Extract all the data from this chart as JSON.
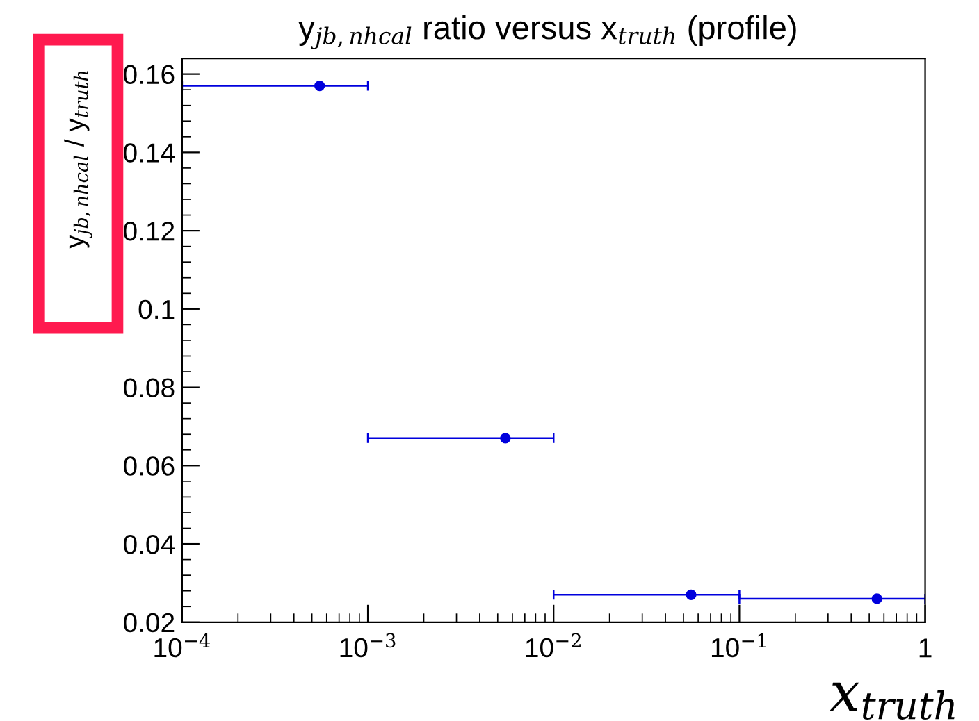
{
  "chart_data": {
    "type": "scatter",
    "title": "y$_{jb,nhcal}$ ratio versus x$_{truth}$ (profile)",
    "xlabel": "x$_{truth}$",
    "ylabel": "y$_{jb,nhcal}$ / y$_{truth}$",
    "x": [
      0.00055,
      0.0055,
      0.055,
      0.55
    ],
    "values": [
      0.157,
      0.067,
      0.027,
      0.026
    ],
    "xerrors": [
      [
        0.0001,
        0.001
      ],
      [
        0.001,
        0.01
      ],
      [
        0.01,
        0.1
      ],
      [
        0.1,
        1
      ]
    ],
    "color": "#0000dd",
    "marker": "circle",
    "log": "x",
    "grid": false,
    "legend": false,
    "xlim": [
      0.0001,
      1
    ],
    "ylim": [
      0.02,
      0.164
    ],
    "xticks": [
      {
        "value": 0.0001,
        "label": "10$^{−4}$"
      },
      {
        "value": 0.001,
        "label": "10$^{−3}$"
      },
      {
        "value": 0.01,
        "label": "10$^{−2}$"
      },
      {
        "value": 0.1,
        "label": "10$^{−1}$"
      },
      1
    ],
    "yticks": [
      0.02,
      0.04,
      0.06,
      0.08,
      0.1,
      0.12,
      0.14,
      0.16
    ]
  }
}
